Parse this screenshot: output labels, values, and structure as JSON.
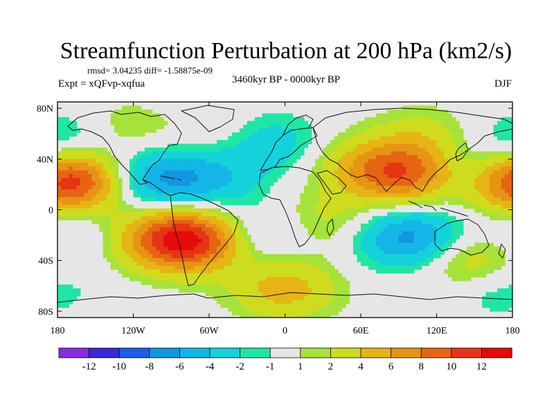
{
  "chart_data": {
    "type": "heatmap",
    "title": "Streamfunction Perturbation at 200 hPa (km2/s)",
    "subtitle": "3460kyr BP - 0000kyr BP",
    "stats_label": "rmsd= 3.04235 diff= -1.58875e-09",
    "experiment_label": "Expt = xQFvp-xqfua",
    "season_label": "DJF",
    "projection": "cylindrical-equidistant",
    "xlim": [
      -180,
      180
    ],
    "ylim": [
      -90,
      90
    ],
    "x_ticks": [
      {
        "value": -180,
        "label": "180"
      },
      {
        "value": -120,
        "label": "120W"
      },
      {
        "value": -60,
        "label": "60W"
      },
      {
        "value": 0,
        "label": "0"
      },
      {
        "value": 60,
        "label": "60E"
      },
      {
        "value": 120,
        "label": "120E"
      },
      {
        "value": 180,
        "label": "180"
      }
    ],
    "y_ticks": [
      {
        "value": 80,
        "label": "80N"
      },
      {
        "value": 40,
        "label": "40N"
      },
      {
        "value": 0,
        "label": "0"
      },
      {
        "value": -40,
        "label": "40S"
      },
      {
        "value": -80,
        "label": "80S"
      }
    ],
    "levels": [
      -12,
      -10,
      -8,
      -6,
      -4,
      -2,
      -1,
      1,
      2,
      4,
      6,
      8,
      10,
      12
    ],
    "level_labels": [
      "-12",
      "-10",
      "-8",
      "-6",
      "-4",
      "-2",
      "-1",
      "1",
      "2",
      "4",
      "6",
      "8",
      "10",
      "12"
    ],
    "colors": [
      "#8a2be2",
      "#3a28d8",
      "#1e5ce6",
      "#1196e0",
      "#13b6e6",
      "#14d2dc",
      "#1fe6a6",
      "#e6e6e6",
      "#a6e23a",
      "#cfdc1e",
      "#e6b414",
      "#e69414",
      "#e66414",
      "#e63414",
      "#e60a0a"
    ],
    "features": [
      {
        "lon": -160,
        "lat": 23,
        "value": 7.5
      },
      {
        "lon": 178,
        "lat": 23,
        "value": 7
      },
      {
        "lon": -78,
        "lat": -24,
        "value": 13
      },
      {
        "lon": -120,
        "lat": -22,
        "value": 2.5
      },
      {
        "lon": 95,
        "lat": 28,
        "value": 9
      },
      {
        "lon": 58,
        "lat": 35,
        "value": 3
      },
      {
        "lon": 110,
        "lat": 58,
        "value": 2.5
      },
      {
        "lon": -135,
        "lat": 62,
        "value": 3
      },
      {
        "lon": 0,
        "lat": -62,
        "value": 5
      },
      {
        "lon": 28,
        "lat": -10,
        "value": 3
      },
      {
        "lon": -45,
        "lat": 55,
        "value": 2
      },
      {
        "lon": 150,
        "lat": -42,
        "value": 5
      },
      {
        "lon": -165,
        "lat": 55,
        "value": -4
      },
      {
        "lon": -112,
        "lat": 24,
        "value": -5.5
      },
      {
        "lon": -65,
        "lat": 25,
        "value": -4.5
      },
      {
        "lon": -15,
        "lat": 52,
        "value": -4
      },
      {
        "lon": 98,
        "lat": -22,
        "value": -7
      },
      {
        "lon": 150,
        "lat": 28,
        "value": -4
      },
      {
        "lon": -160,
        "lat": -20,
        "value": -2.5
      },
      {
        "lon": 165,
        "lat": -58,
        "value": -3
      },
      {
        "lon": -15,
        "lat": -18,
        "value": -3
      }
    ],
    "grid": false,
    "legend": "bottom"
  }
}
